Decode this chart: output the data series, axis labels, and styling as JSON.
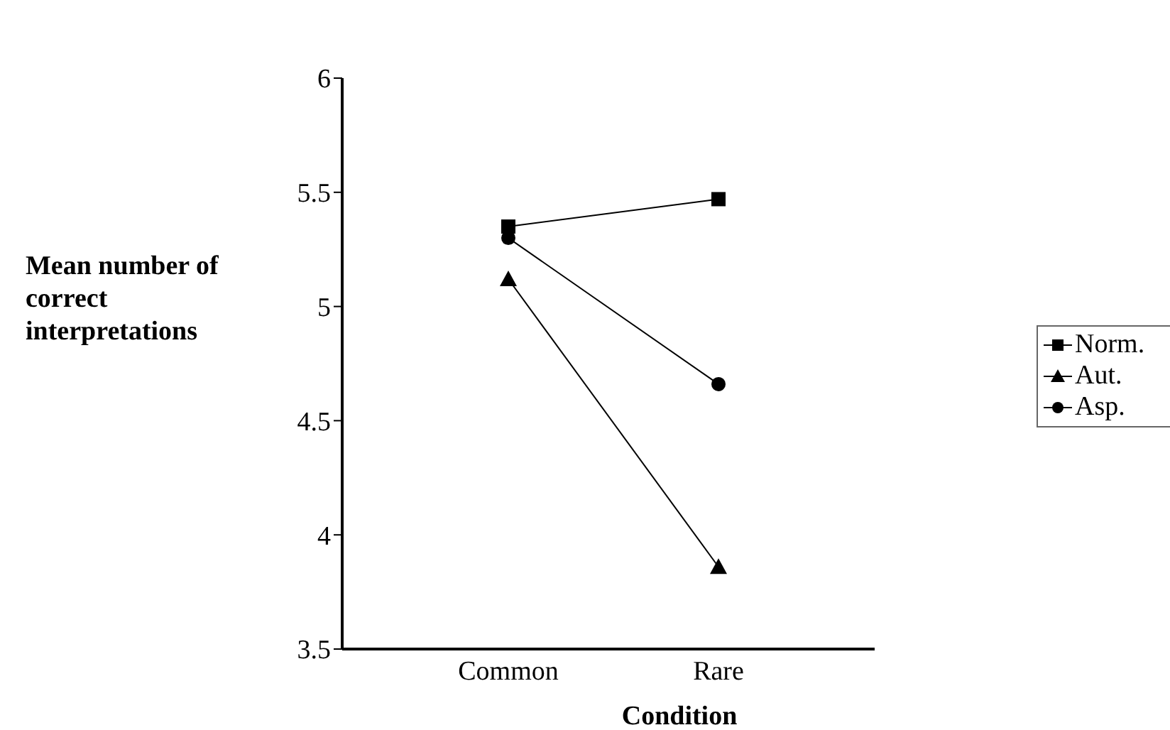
{
  "chart_data": {
    "type": "line",
    "xlabel": "Condition",
    "ylabel": "Mean number of correct interpretations",
    "categories": [
      "Common",
      "Rare"
    ],
    "series": [
      {
        "name": "Norm.",
        "color": "#000000",
        "marker": "square",
        "values": [
          5.35,
          5.47
        ]
      },
      {
        "name": "Aut.",
        "color": "#000000",
        "marker": "triangle",
        "values": [
          5.12,
          3.86
        ]
      },
      {
        "name": "Asp.",
        "color": "#000000",
        "marker": "circle",
        "values": [
          5.3,
          4.66
        ]
      }
    ],
    "ylim": [
      3.5,
      6
    ],
    "yticks": [
      3.5,
      4,
      4.5,
      5,
      5.5,
      6
    ],
    "grid": false,
    "legend": "right"
  }
}
